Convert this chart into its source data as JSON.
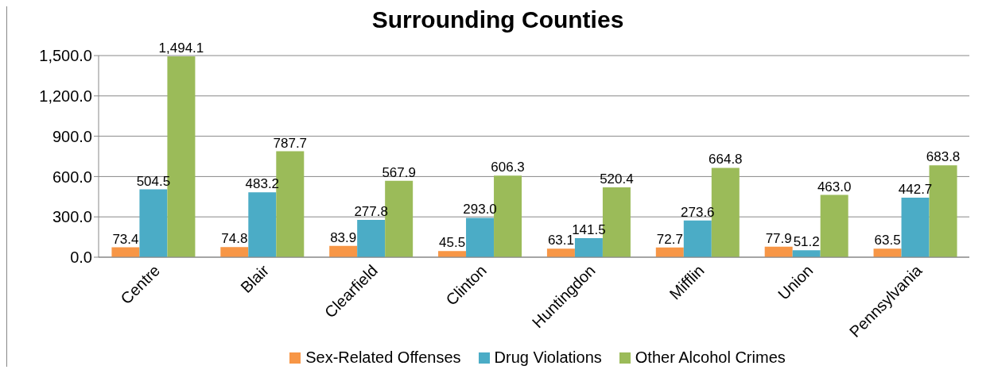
{
  "chart_data": {
    "type": "bar",
    "title": "Surrounding Counties",
    "categories": [
      "Centre",
      "Blair",
      "Clearfield",
      "Clinton",
      "Huntingdon",
      "Mifflin",
      "Union",
      "Pennsylvania"
    ],
    "series": [
      {
        "name": "Sex-Related Offenses",
        "color": "#f79646",
        "values": [
          73.4,
          74.8,
          83.9,
          45.5,
          63.1,
          72.7,
          77.9,
          63.5
        ],
        "value_labels": [
          "73.4",
          "74.8",
          "83.9",
          "45.5",
          "63.1",
          "72.7",
          "77.9",
          "63.5"
        ]
      },
      {
        "name": "Drug Violations",
        "color": "#4bacc6",
        "values": [
          504.5,
          483.2,
          277.8,
          293.0,
          141.5,
          273.6,
          51.2,
          442.7
        ],
        "value_labels": [
          "504.5",
          "483.2",
          "277.8",
          "293.0",
          "141.5",
          "273.6",
          "51.2",
          "442.7"
        ]
      },
      {
        "name": "Other Alcohol Crimes",
        "color": "#9bbb59",
        "values": [
          1494.1,
          787.7,
          567.9,
          606.3,
          520.4,
          664.8,
          463.0,
          683.8
        ],
        "value_labels": [
          "1,494.1",
          "787.7",
          "567.9",
          "606.3",
          "520.4",
          "664.8",
          "463.0",
          "683.8"
        ]
      }
    ],
    "ylim": [
      0,
      1500
    ],
    "yticks": [
      {
        "value": 0,
        "label": "0.0"
      },
      {
        "value": 300,
        "label": "300.0"
      },
      {
        "value": 600,
        "label": "600.0"
      },
      {
        "value": 900,
        "label": "900.0"
      },
      {
        "value": 1200,
        "label": "1,200.0"
      },
      {
        "value": 1500,
        "label": "1,500.0"
      }
    ],
    "grid": "y",
    "legend": "bottom"
  }
}
